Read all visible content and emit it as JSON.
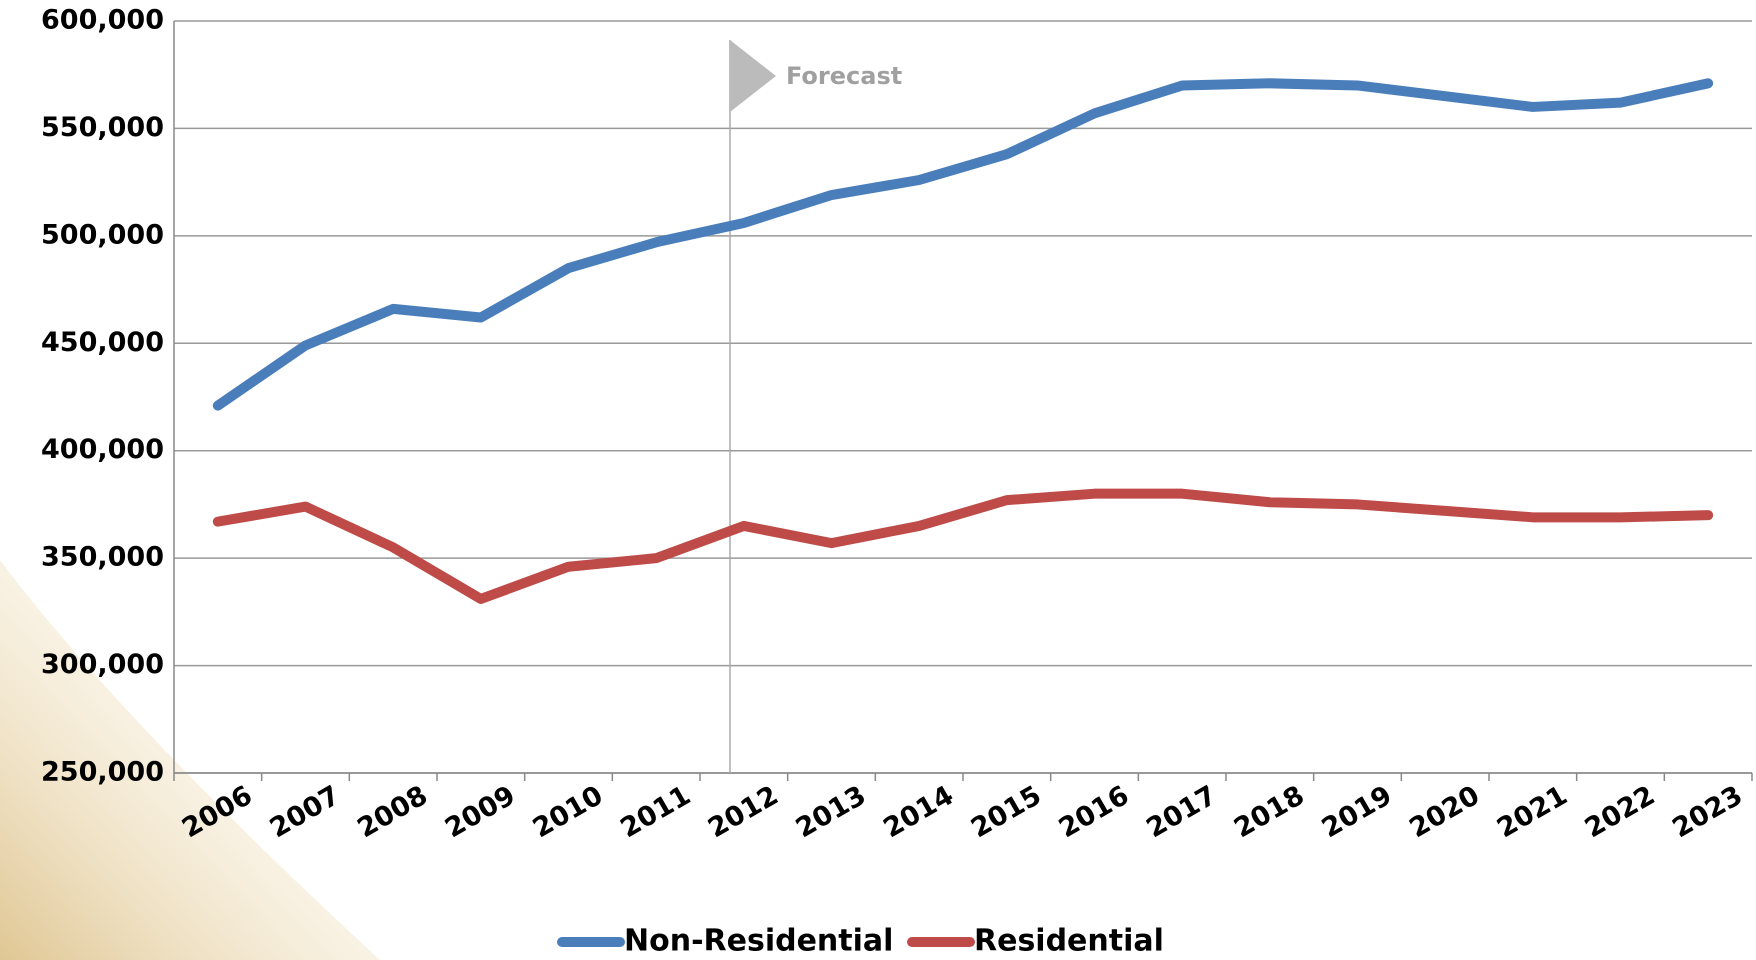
{
  "chart_data": {
    "type": "line",
    "categories": [
      "2006",
      "2007",
      "2008",
      "2009",
      "2010",
      "2011",
      "2012",
      "2013",
      "2014",
      "2015",
      "2016",
      "2017",
      "2018",
      "2019",
      "2020",
      "2021",
      "2022",
      "2023"
    ],
    "series": [
      {
        "name": "Non-Residential",
        "color": "#4a7ebb",
        "values": [
          421000,
          449000,
          466000,
          462000,
          485000,
          497000,
          506000,
          519000,
          526000,
          538000,
          557000,
          570000,
          571000,
          570000,
          565000,
          560000,
          562000,
          571000
        ]
      },
      {
        "name": "Residential",
        "color": "#be4b48",
        "values": [
          367000,
          374000,
          355000,
          331000,
          346000,
          350000,
          365000,
          357000,
          365000,
          377000,
          380000,
          380000,
          376000,
          375000,
          372000,
          369000,
          369000,
          370000
        ]
      }
    ],
    "ylim": [
      250000,
      600000
    ],
    "yticks": [
      {
        "value": 250000,
        "label": "250,000"
      },
      {
        "value": 300000,
        "label": "300,000"
      },
      {
        "value": 350000,
        "label": "350,000"
      },
      {
        "value": 400000,
        "label": "400,000"
      },
      {
        "value": 450000,
        "label": "450,000"
      },
      {
        "value": 500000,
        "label": "500,000"
      },
      {
        "value": 550000,
        "label": "550,000"
      },
      {
        "value": 600000,
        "label": "600,000"
      }
    ],
    "grid": true,
    "annotation": "Forecast",
    "legend": "bottom"
  }
}
